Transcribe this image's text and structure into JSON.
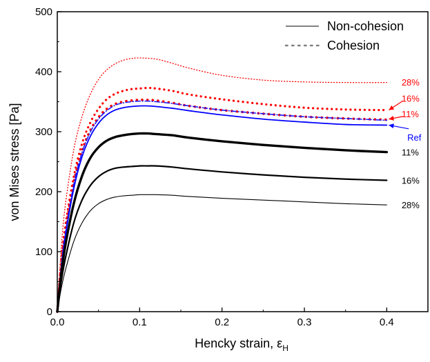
{
  "chart_data": {
    "type": "line",
    "xlabel": "Hencky strain, ε",
    "xlabel_subscript": "H",
    "ylabel": "von Mises stress [Pa]",
    "xlim": [
      0.0,
      0.45
    ],
    "ylim": [
      0,
      500
    ],
    "xticks": [
      0.0,
      0.1,
      0.2,
      0.3,
      0.4
    ],
    "xtick_labels": [
      "0.0",
      "0.1",
      "0.2",
      "0.3",
      "0.4"
    ],
    "yticks": [
      0,
      100,
      200,
      300,
      400,
      500
    ],
    "ytick_labels": [
      "0",
      "100",
      "200",
      "300",
      "400",
      "500"
    ],
    "grid": false,
    "legend_position": "top-right",
    "legend": [
      {
        "label": "Non-cohesion",
        "style": "solid",
        "color": "#808080"
      },
      {
        "label": "Cohesion",
        "style": "dotted",
        "color": "#808080"
      }
    ],
    "series": [
      {
        "label": "28%",
        "group": "Cohesion",
        "color": "#ff0000",
        "style": "dotted",
        "width": 1.3,
        "x": [
          0,
          0.005,
          0.01,
          0.02,
          0.03,
          0.04,
          0.05,
          0.06,
          0.07,
          0.08,
          0.09,
          0.1,
          0.12,
          0.14,
          0.16,
          0.2,
          0.25,
          0.3,
          0.35,
          0.4
        ],
        "y": [
          0,
          110,
          180,
          270,
          325,
          362,
          387,
          403,
          413,
          419,
          422,
          423,
          421,
          414,
          406,
          394,
          386,
          383,
          382,
          382
        ]
      },
      {
        "label": "16%",
        "group": "Cohesion",
        "color": "#ff0000",
        "style": "dotted",
        "width": 3.2,
        "x": [
          0,
          0.005,
          0.01,
          0.02,
          0.03,
          0.04,
          0.05,
          0.06,
          0.07,
          0.08,
          0.09,
          0.1,
          0.11,
          0.12,
          0.14,
          0.16,
          0.2,
          0.25,
          0.3,
          0.35,
          0.4
        ],
        "y": [
          0,
          85,
          145,
          225,
          280,
          315,
          338,
          354,
          363,
          368,
          371,
          372,
          373,
          372,
          368,
          362,
          354,
          346,
          340,
          337,
          336
        ]
      },
      {
        "label": "11%",
        "group": "Cohesion",
        "color": "#ff0000",
        "style": "dotted",
        "width": 3.6,
        "x": [
          0,
          0.005,
          0.01,
          0.02,
          0.03,
          0.04,
          0.05,
          0.06,
          0.07,
          0.08,
          0.09,
          0.1,
          0.11,
          0.12,
          0.14,
          0.16,
          0.2,
          0.25,
          0.3,
          0.35,
          0.4
        ],
        "y": [
          0,
          80,
          135,
          215,
          268,
          302,
          324,
          338,
          346,
          350,
          352,
          353,
          353,
          352,
          348,
          343,
          336,
          330,
          325,
          322,
          320
        ]
      },
      {
        "label": "Ref",
        "group": "Cohesion",
        "color": "#1a1aff",
        "style": "dashdot",
        "width": 1.6,
        "x": [
          0,
          0.005,
          0.01,
          0.02,
          0.03,
          0.04,
          0.05,
          0.06,
          0.07,
          0.08,
          0.09,
          0.1,
          0.11,
          0.12,
          0.14,
          0.16,
          0.2,
          0.25,
          0.3,
          0.35,
          0.4
        ],
        "y": [
          0,
          78,
          132,
          212,
          265,
          299,
          321,
          335,
          344,
          348,
          350,
          351,
          351,
          350,
          347,
          343,
          336,
          330,
          325,
          322,
          319
        ]
      },
      {
        "label": "Ref",
        "group": "Non-cohesion",
        "color": "#0000ff",
        "style": "solid",
        "width": 1.8,
        "x": [
          0,
          0.005,
          0.01,
          0.02,
          0.03,
          0.04,
          0.05,
          0.06,
          0.07,
          0.08,
          0.09,
          0.1,
          0.11,
          0.12,
          0.14,
          0.16,
          0.2,
          0.25,
          0.3,
          0.35,
          0.4
        ],
        "y": [
          0,
          75,
          128,
          205,
          258,
          292,
          314,
          328,
          336,
          340,
          342,
          343,
          343,
          342,
          339,
          335,
          328,
          321,
          316,
          312,
          311
        ]
      },
      {
        "label": "11%",
        "group": "Non-cohesion",
        "color": "#000000",
        "style": "solid",
        "width": 3.4,
        "x": [
          0,
          0.005,
          0.01,
          0.02,
          0.03,
          0.04,
          0.05,
          0.06,
          0.07,
          0.08,
          0.09,
          0.1,
          0.11,
          0.12,
          0.14,
          0.16,
          0.2,
          0.25,
          0.3,
          0.35,
          0.4
        ],
        "y": [
          0,
          65,
          112,
          180,
          226,
          256,
          274,
          285,
          291,
          294,
          296,
          297,
          297,
          296,
          294,
          290,
          284,
          278,
          273,
          269,
          266
        ]
      },
      {
        "label": "16%",
        "group": "Non-cohesion",
        "color": "#000000",
        "style": "solid",
        "width": 2.2,
        "x": [
          0,
          0.005,
          0.01,
          0.02,
          0.03,
          0.04,
          0.05,
          0.06,
          0.07,
          0.08,
          0.09,
          0.1,
          0.11,
          0.12,
          0.14,
          0.16,
          0.2,
          0.25,
          0.3,
          0.35,
          0.4
        ],
        "y": [
          0,
          52,
          90,
          148,
          186,
          210,
          225,
          234,
          239,
          241,
          242,
          243,
          243,
          243,
          241,
          238,
          233,
          228,
          224,
          221,
          219
        ]
      },
      {
        "label": "28%",
        "group": "Non-cohesion",
        "color": "#000000",
        "style": "solid",
        "width": 1.1,
        "x": [
          0,
          0.005,
          0.01,
          0.02,
          0.03,
          0.04,
          0.05,
          0.06,
          0.07,
          0.08,
          0.09,
          0.1,
          0.11,
          0.12,
          0.14,
          0.16,
          0.2,
          0.25,
          0.3,
          0.35,
          0.4
        ],
        "y": [
          0,
          40,
          70,
          117,
          148,
          168,
          180,
          187,
          191,
          193,
          194,
          195,
          195,
          195,
          194,
          192,
          189,
          186,
          183,
          180,
          178
        ]
      }
    ],
    "annotations": [
      {
        "text": "28%",
        "color": "#ff0000",
        "at": [
          0.418,
          383
        ]
      },
      {
        "text": "16%",
        "color": "#ff0000",
        "at": [
          0.418,
          356
        ],
        "arrow_to": [
          0.4,
          336
        ]
      },
      {
        "text": "11%",
        "color": "#ff0000",
        "at": [
          0.418,
          330
        ],
        "arrow_to": [
          0.4,
          321
        ]
      },
      {
        "text": "Ref",
        "color": "#0000ff",
        "at": [
          0.425,
          291
        ],
        "arrow_to": [
          0.4,
          311
        ]
      },
      {
        "text": "11%",
        "color": "#000000",
        "at": [
          0.418,
          266
        ]
      },
      {
        "text": "16%",
        "color": "#000000",
        "at": [
          0.418,
          219
        ]
      },
      {
        "text": "28%",
        "color": "#000000",
        "at": [
          0.418,
          178
        ]
      }
    ]
  }
}
